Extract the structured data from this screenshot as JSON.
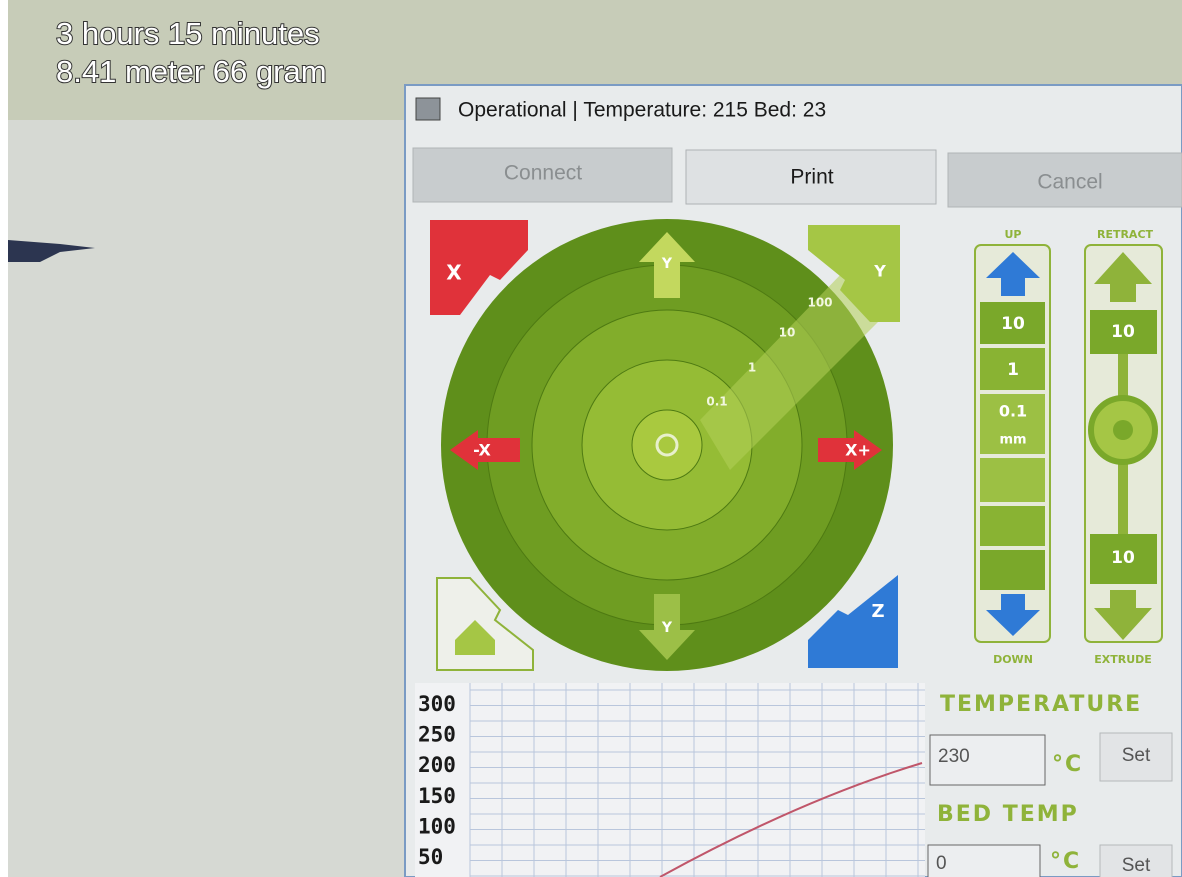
{
  "overlay": {
    "time": "3 hours 15 minutes",
    "material": "8.41 meter 66 gram"
  },
  "window": {
    "title": "Operational | Temperature: 215 Bed: 23",
    "buttons": [
      "Connect",
      "Print",
      "Cancel"
    ]
  },
  "jog": {
    "home_x": "X",
    "home_y": "Y",
    "home_z": "Z",
    "x_minus": "-X",
    "x_plus": "X+",
    "y_plus": "Y",
    "y_minus": "Y",
    "steps": [
      "0.1",
      "1",
      "10",
      "100"
    ]
  },
  "z_axis": {
    "up": "UP",
    "down": "DOWN",
    "steps": [
      "10",
      "1",
      "0.1"
    ],
    "unit": "mm"
  },
  "extruder": {
    "retract": "RETRACT",
    "extrude": "EXTRUDE",
    "retract_amount": "10",
    "extrude_amount": "10"
  },
  "graph": {
    "labels": [
      "300",
      "250",
      "200",
      "150",
      "100",
      "50"
    ]
  },
  "temperature": {
    "label": "TEMPERATURE",
    "value": "230",
    "unit": "°C",
    "button": "Set"
  },
  "bed": {
    "label": "BED TEMP",
    "value": "0",
    "unit": "°C",
    "button": "Set"
  }
}
